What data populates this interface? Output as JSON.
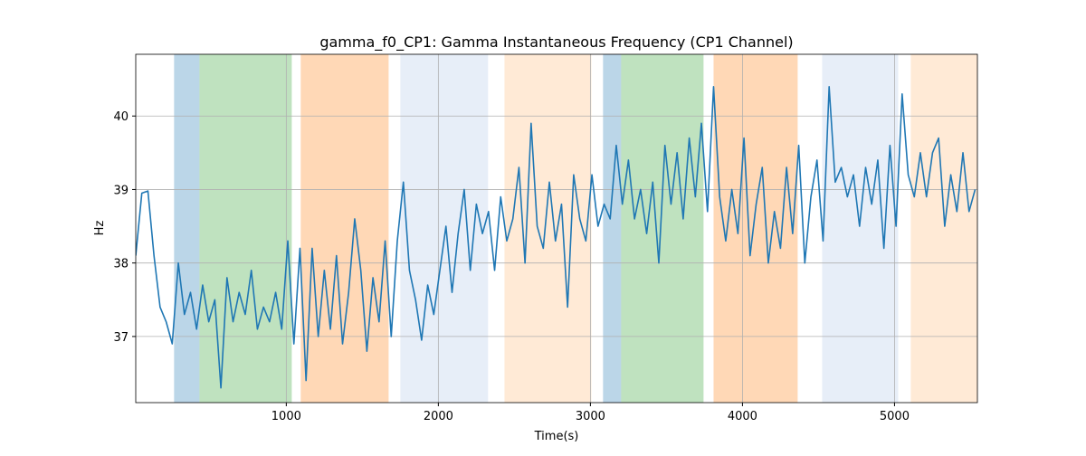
{
  "chart_data": {
    "type": "line",
    "title": "gamma_f0_CP1: Gamma Instantaneous Frequency (CP1 Channel)",
    "xlabel": "Time(s)",
    "ylabel": "Hz",
    "xlim": [
      10,
      5545
    ],
    "ylim": [
      36.1,
      40.84
    ],
    "xticks": [
      1000,
      2000,
      3000,
      4000,
      5000
    ],
    "yticks": [
      37,
      38,
      39,
      40
    ],
    "grid": true,
    "spans": [
      {
        "x0": 262,
        "x1": 429,
        "color": "rgba(31,119,180,0.3)"
      },
      {
        "x0": 429,
        "x1": 1036,
        "color": "rgba(44,160,44,0.3)"
      },
      {
        "x0": 1095,
        "x1": 1673,
        "color": "rgba(255,127,14,0.3)"
      },
      {
        "x0": 1750,
        "x1": 2327,
        "color": "rgba(174,199,232,0.3)"
      },
      {
        "x0": 2435,
        "x1": 3006,
        "color": "rgba(255,187,120,0.3)"
      },
      {
        "x0": 3083,
        "x1": 3202,
        "color": "rgba(31,119,180,0.3)"
      },
      {
        "x0": 3202,
        "x1": 3744,
        "color": "rgba(44,160,44,0.3)"
      },
      {
        "x0": 3810,
        "x1": 4363,
        "color": "rgba(255,127,14,0.3)"
      },
      {
        "x0": 4524,
        "x1": 5024,
        "color": "rgba(174,199,232,0.3)"
      },
      {
        "x0": 5107,
        "x1": 5545,
        "color": "rgba(255,187,120,0.3)"
      }
    ],
    "x": [
      10,
      50,
      90,
      130,
      170,
      210,
      250,
      290,
      330,
      370,
      410,
      450,
      490,
      530,
      570,
      610,
      650,
      690,
      730,
      770,
      810,
      850,
      890,
      930,
      970,
      1010,
      1050,
      1090,
      1130,
      1170,
      1210,
      1250,
      1290,
      1330,
      1370,
      1410,
      1450,
      1490,
      1530,
      1570,
      1610,
      1650,
      1690,
      1730,
      1770,
      1810,
      1850,
      1890,
      1930,
      1970,
      2010,
      2050,
      2090,
      2130,
      2170,
      2210,
      2250,
      2290,
      2330,
      2370,
      2410,
      2450,
      2490,
      2530,
      2570,
      2610,
      2650,
      2690,
      2730,
      2770,
      2810,
      2850,
      2890,
      2930,
      2970,
      3010,
      3050,
      3090,
      3130,
      3170,
      3210,
      3250,
      3290,
      3330,
      3370,
      3410,
      3450,
      3490,
      3530,
      3570,
      3610,
      3650,
      3690,
      3730,
      3770,
      3810,
      3850,
      3890,
      3930,
      3970,
      4010,
      4050,
      4090,
      4130,
      4170,
      4210,
      4250,
      4290,
      4330,
      4370,
      4410,
      4450,
      4490,
      4530,
      4570,
      4610,
      4650,
      4690,
      4730,
      4770,
      4810,
      4850,
      4890,
      4930,
      4970,
      5010,
      5050,
      5090,
      5130,
      5170,
      5210,
      5250,
      5290,
      5330,
      5370,
      5410,
      5450,
      5490,
      5530
    ],
    "series": [
      {
        "color": "#1f77b4",
        "values": [
          38.1,
          38.95,
          38.98,
          38.1,
          37.4,
          37.2,
          36.9,
          38.0,
          37.3,
          37.6,
          37.1,
          37.7,
          37.2,
          37.5,
          36.3,
          37.8,
          37.2,
          37.6,
          37.3,
          37.9,
          37.1,
          37.4,
          37.2,
          37.6,
          37.1,
          38.3,
          36.9,
          38.2,
          36.4,
          38.2,
          37.0,
          37.9,
          37.1,
          38.1,
          36.9,
          37.6,
          38.6,
          37.9,
          36.8,
          37.8,
          37.2,
          38.3,
          37.0,
          38.3,
          39.1,
          37.9,
          37.5,
          36.95,
          37.7,
          37.3,
          37.9,
          38.5,
          37.6,
          38.4,
          39.0,
          37.9,
          38.8,
          38.4,
          38.7,
          37.9,
          38.9,
          38.3,
          38.6,
          39.3,
          38.0,
          39.9,
          38.5,
          38.2,
          39.1,
          38.3,
          38.8,
          37.4,
          39.2,
          38.6,
          38.3,
          39.2,
          38.5,
          38.8,
          38.6,
          39.6,
          38.8,
          39.4,
          38.6,
          39.0,
          38.4,
          39.1,
          38.0,
          39.6,
          38.8,
          39.5,
          38.6,
          39.7,
          38.9,
          39.9,
          38.7,
          40.4,
          38.9,
          38.3,
          39.0,
          38.4,
          39.7,
          38.1,
          38.8,
          39.3,
          38.0,
          38.7,
          38.2,
          39.3,
          38.4,
          39.6,
          38.0,
          38.9,
          39.4,
          38.3,
          40.4,
          39.1,
          39.3,
          38.9,
          39.2,
          38.5,
          39.3,
          38.8,
          39.4,
          38.2,
          39.6,
          38.5,
          40.3,
          39.2,
          38.9,
          39.5,
          38.9,
          39.5,
          39.7,
          38.5,
          39.2,
          38.7,
          39.5,
          38.7,
          39.0
        ]
      }
    ]
  }
}
